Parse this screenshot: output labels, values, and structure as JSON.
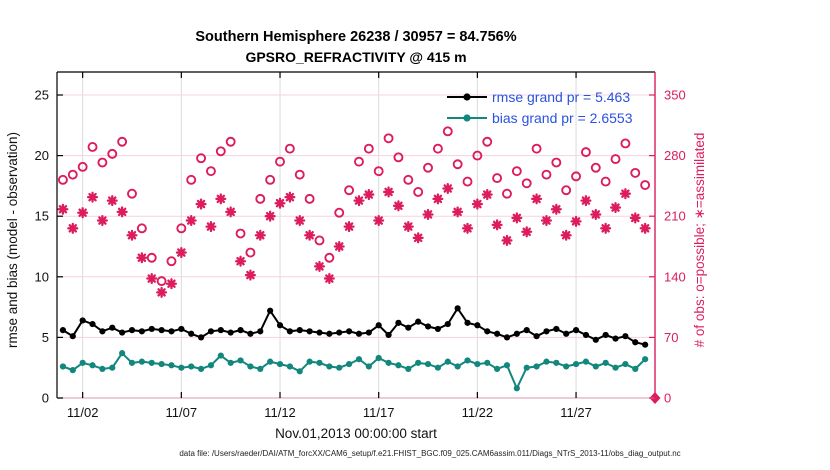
{
  "title": {
    "line1": "Southern Hemisphere 26238 / 30957 = 84.756%",
    "line2": "GPSRO_REFRACTIVITY @ 415 m"
  },
  "axes": {
    "ylabel_left": "rmse and bias (model - observation)",
    "ylabel_right": "# of obs: o=possible; ∗=assimilated",
    "xlabel": "Nov.01,2013 00:00:00 start"
  },
  "legend": {
    "rmse_label": "rmse grand pr = 5.463",
    "bias_label": "bias grand pr = 2.6553"
  },
  "caption": "data file: /Users/raeder/DAI/ATM_forcXX/CAM6_setup/f.e21.FHIST_BGC.f09_025.CAM6assim.011/Diags_NTrS_2013-11/obs_diag_output.nc",
  "colors": {
    "obs": "#DC1C5E",
    "rmse": "#000000",
    "bias": "#12877D",
    "legend_text": "#2A52E0",
    "grid_vertical": "#DBDBDB",
    "grid_horizontal": "#F5D3E0",
    "axis_bottom": "#E5B9CA"
  },
  "chart_data": {
    "type": "scatter",
    "title": "Southern Hemisphere 26238 / 30957 = 84.756%",
    "subtitle": "GPSRO_REFRACTIVITY @ 415 m",
    "xlabel": "Nov.01,2013 00:00:00 start",
    "ylabel_left": "rmse and bias (model - observation)",
    "ylabel_right": "# of obs: o=possible; ∗=assimilated",
    "x_start_date": "Nov.01,2013 00:00:00",
    "xlim_days": [
      0.7,
      31.0
    ],
    "ylim_left": [
      0,
      26.9
    ],
    "ylim_right": [
      0,
      376
    ],
    "yticks_left": [
      0,
      5,
      10,
      15,
      20,
      25
    ],
    "yticks_right": [
      0,
      70,
      140,
      210,
      280,
      350
    ],
    "xticks": {
      "days": [
        2,
        7,
        12,
        17,
        22,
        27
      ],
      "labels": [
        "11/02",
        "11/07",
        "11/12",
        "11/17",
        "11/22",
        "11/27"
      ]
    },
    "grid": true,
    "legend_position": "top-right-inside",
    "x_days": [
      1,
      1.5,
      2,
      2.5,
      3,
      3.5,
      4,
      4.5,
      5,
      5.5,
      6,
      6.5,
      7,
      7.5,
      8,
      8.5,
      9,
      9.5,
      10,
      10.5,
      11,
      11.5,
      12,
      12.5,
      13,
      13.5,
      14,
      14.5,
      15,
      15.5,
      16,
      16.5,
      17,
      17.5,
      18,
      18.5,
      19,
      19.5,
      20,
      20.5,
      21,
      21.5,
      22,
      22.5,
      23,
      23.5,
      24,
      24.5,
      25,
      25.5,
      26,
      26.5,
      27,
      27.5,
      28,
      28.5,
      29,
      29.5,
      30,
      30.5
    ],
    "series": [
      {
        "name": "possible",
        "axis": "right",
        "marker": "circle",
        "values": [
          252,
          258,
          267,
          290,
          272,
          282,
          296,
          236,
          196,
          162,
          135,
          158,
          196,
          252,
          277,
          262,
          285,
          296,
          190,
          168,
          230,
          252,
          273,
          288,
          258,
          230,
          182,
          162,
          214,
          240,
          273,
          288,
          262,
          300,
          278,
          252,
          238,
          266,
          288,
          308,
          270,
          250,
          280,
          296,
          254,
          236,
          262,
          248,
          288,
          258,
          272,
          240,
          256,
          284,
          266,
          250,
          276,
          294,
          260,
          246
        ]
      },
      {
        "name": "assimilated",
        "axis": "right",
        "marker": "asterisk",
        "values": [
          218,
          196,
          214,
          232,
          205,
          228,
          215,
          188,
          162,
          138,
          122,
          132,
          168,
          205,
          224,
          198,
          230,
          215,
          158,
          142,
          188,
          210,
          225,
          232,
          205,
          188,
          152,
          138,
          175,
          198,
          228,
          235,
          205,
          238,
          222,
          198,
          185,
          212,
          230,
          242,
          215,
          196,
          224,
          235,
          200,
          182,
          208,
          192,
          230,
          205,
          218,
          188,
          204,
          228,
          212,
          196,
          220,
          236,
          208,
          196
        ]
      },
      {
        "name": "rmse",
        "axis": "left",
        "marker": "dot-line",
        "legend": "rmse grand pr = 5.463",
        "grand_value": 5.463,
        "values": [
          5.6,
          5.1,
          6.4,
          6.1,
          5.5,
          5.8,
          5.4,
          5.6,
          5.5,
          5.7,
          5.6,
          5.5,
          5.7,
          5.3,
          5.0,
          5.5,
          5.6,
          5.4,
          5.6,
          5.3,
          5.5,
          7.2,
          6.0,
          5.5,
          5.6,
          5.5,
          5.4,
          5.3,
          5.4,
          5.5,
          5.3,
          5.4,
          6.0,
          5.2,
          6.2,
          5.8,
          6.3,
          5.9,
          5.7,
          6.1,
          7.4,
          6.2,
          6.0,
          5.5,
          5.3,
          5.0,
          5.3,
          5.6,
          5.1,
          5.5,
          5.7,
          5.3,
          5.6,
          5.2,
          4.8,
          5.2,
          4.9,
          5.1,
          4.6,
          4.4
        ]
      },
      {
        "name": "bias",
        "axis": "left",
        "marker": "dot-line",
        "legend": "bias grand pr = 2.6553",
        "grand_value": 2.6553,
        "values": [
          2.6,
          2.3,
          2.9,
          2.7,
          2.4,
          2.5,
          3.7,
          2.9,
          3.0,
          2.9,
          2.8,
          2.7,
          2.5,
          2.6,
          2.4,
          2.7,
          3.5,
          2.9,
          3.1,
          2.6,
          2.4,
          3.0,
          2.8,
          2.6,
          2.2,
          3.0,
          2.9,
          2.6,
          2.5,
          2.8,
          3.2,
          2.6,
          3.3,
          2.9,
          2.7,
          2.4,
          2.9,
          2.8,
          2.5,
          3.0,
          2.6,
          3.1,
          2.8,
          2.9,
          2.4,
          2.7,
          0.8,
          2.5,
          2.6,
          3.0,
          2.9,
          2.6,
          2.8,
          3.0,
          2.6,
          2.9,
          2.5,
          2.8,
          2.4,
          3.2
        ]
      }
    ],
    "end_marker": {
      "day": 31.0,
      "value": 0,
      "axis": "right",
      "marker": "diamond"
    }
  }
}
